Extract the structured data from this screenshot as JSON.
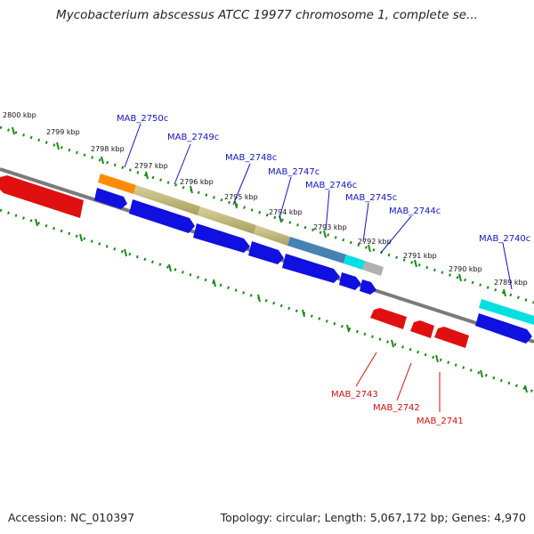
{
  "title": "Mycobacterium abscessus ATCC 19977 chromosome 1, complete se...",
  "footer": {
    "accession": "Accession: NC_010397",
    "summary": "Topology: circular; Length: 5,067,172 bp; Genes: 4,970"
  },
  "kbp_labels": [
    "2800 kbp",
    "2799 kbp",
    "2798 kbp",
    "2797 kbp",
    "2796 kbp",
    "2795 kbp",
    "2794 kbp",
    "2793 kbp",
    "2792 kbp",
    "2791 kbp",
    "2790 kbp",
    "2789 kbp"
  ],
  "genes_top": [
    "MAB_2750c",
    "MAB_2749c",
    "MAB_2748c",
    "MAB_2747c",
    "MAB_2746c",
    "MAB_2745c",
    "MAB_2744c",
    "MAB_2740c"
  ],
  "genes_bottom": [
    "MAB_2743",
    "MAB_2742",
    "MAB_2741"
  ],
  "colors": {
    "forward_label": "#1515c0",
    "reverse_label": "#d01010",
    "cds_forward": "#1010e0",
    "cds_reverse": "#e01010",
    "backbone": "#7a7a7a",
    "ticks": "#1a8a1a",
    "feature_orange": "#ff8c00",
    "feature_khaki": "#b8b070",
    "feature_steelblue": "#4682b4",
    "feature_cyan": "#00e0e0",
    "feature_gray": "#b0b0b0"
  }
}
